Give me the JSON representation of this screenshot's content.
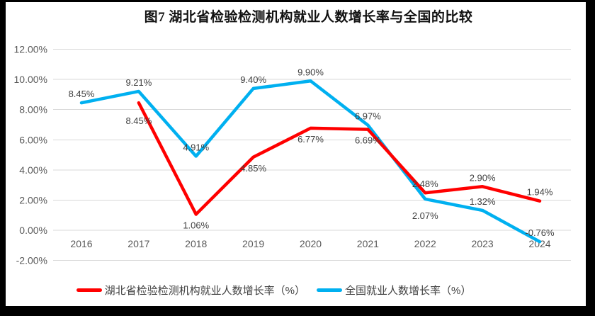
{
  "frame": {
    "border_color": "#000000",
    "background": "#ffffff"
  },
  "chart_data": {
    "type": "line",
    "title": "图7 湖北省检验检测机构就业人数增长率与全国的比较",
    "categories": [
      "2016",
      "2017",
      "2018",
      "2019",
      "2020",
      "2021",
      "2022",
      "2023",
      "2024"
    ],
    "series": [
      {
        "key": "hubei",
        "name": "湖北省检验检测机构就业人数增长率（%）",
        "color": "#FF0000",
        "values": [
          null,
          8.45,
          1.06,
          4.85,
          6.77,
          6.69,
          2.48,
          2.9,
          1.94
        ],
        "labels": [
          "",
          "8.45%",
          "1.06%",
          "4.85%",
          "6.77%",
          "6.69%",
          "2.48%",
          "2.90%",
          "1.94%"
        ],
        "label_sides": [
          "",
          "below",
          "below",
          "below",
          "below",
          "below",
          "above",
          "above",
          "above"
        ]
      },
      {
        "key": "national",
        "name": "全国就业人数增长率（%）",
        "color": "#00B0F0",
        "values": [
          8.45,
          9.21,
          4.91,
          9.4,
          9.9,
          6.97,
          2.07,
          1.32,
          -0.76
        ],
        "labels": [
          "8.45%",
          "9.21%",
          "4.91%",
          "9.40%",
          "9.90%",
          "6.97%",
          "2.07%",
          "1.32%",
          "-0.76%"
        ],
        "label_sides": [
          "above",
          "above",
          "above",
          "above",
          "above",
          "above",
          "below",
          "above",
          "above"
        ]
      }
    ],
    "xlabel": "",
    "ylabel": "",
    "ylim": [
      -2,
      12
    ],
    "yticks": [
      {
        "value": 12,
        "label": "12.00%"
      },
      {
        "value": 10,
        "label": "10.00%"
      },
      {
        "value": 8,
        "label": "8.00%"
      },
      {
        "value": 6,
        "label": "6.00%"
      },
      {
        "value": 4,
        "label": "4.00%"
      },
      {
        "value": 2,
        "label": "2.00%"
      },
      {
        "value": 0,
        "label": "0.00%"
      },
      {
        "value": -2,
        "label": "-2.00%"
      }
    ],
    "grid": true,
    "legend_position": "bottom"
  }
}
